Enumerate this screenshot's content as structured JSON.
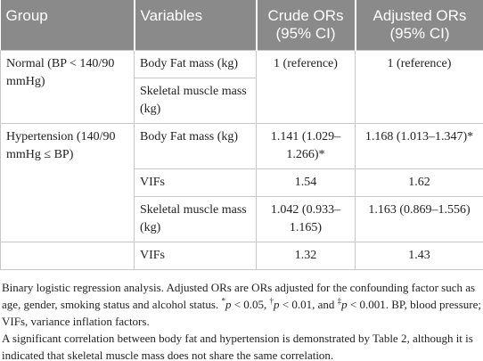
{
  "table": {
    "header": [
      "Group",
      "Variables",
      "Crude ORs (95% CI)",
      "Adjusted ORs (95% CI)"
    ],
    "rows": [
      [
        "Normal (BP < 140/90 mmHg)",
        "Body Fat mass (kg)",
        "1 (reference)",
        "1 (reference)"
      ],
      [
        "Skeletal muscle mass (kg)"
      ],
      [
        "Hypertension (140/90 mmHg ≤ BP)",
        "Body Fat mass (kg)",
        "1.141 (1.029–1.266)*",
        "1.168 (1.013–1.347)*"
      ],
      [
        "VIFs",
        "1.54",
        "1.62"
      ],
      [
        "Skeletal muscle mass (kg)",
        "1.042 (0.933–1.165)",
        "1.163 (0.869–1.556)"
      ],
      [
        "VIFs",
        "1.32",
        "1.43"
      ]
    ]
  },
  "footnote": {
    "segments": [
      "Binary logistic regression analysis. Adjusted ORs are ORs adjusted for the confounding factor such as age, gender, smoking status and alcohol status. ",
      "*",
      "p",
      " < 0.05, ",
      "†",
      "p",
      " < 0.01, and ",
      "‡",
      "p",
      " < 0.001. BP, blood pressure; VIFs, variance inflation factors."
    ],
    "note": "A significant correlation between body fat and hypertension is demonstrated by Table 2, although it is indicated that skeletal muscle mass does not share the same correlation."
  }
}
